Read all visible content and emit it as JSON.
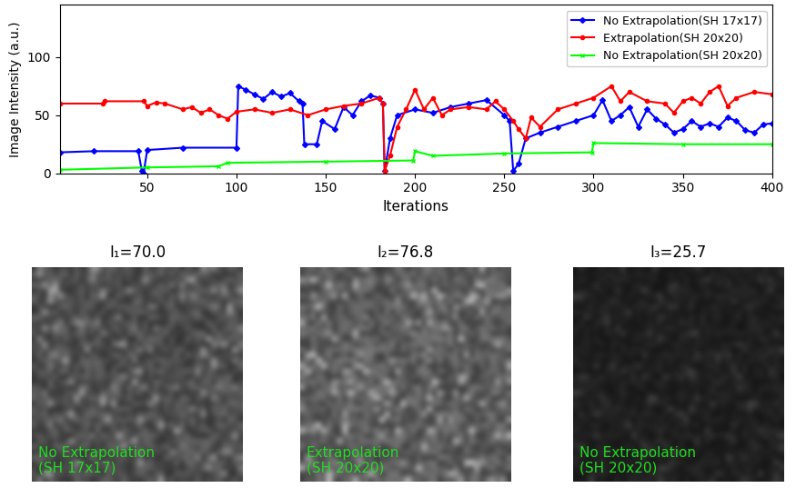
{
  "chart_data": {
    "type": "line",
    "xlabel": "Iterations",
    "ylabel": "Image Intensity (a.u.)",
    "xlim": [
      1,
      400
    ],
    "xticks": [
      50,
      100,
      150,
      200,
      250,
      300,
      350,
      400
    ],
    "ylim": [
      0,
      145
    ],
    "yticks": [
      0,
      50,
      100
    ],
    "grid": false,
    "legend": "upper right",
    "series": [
      {
        "name": "No Extrapolation(SH 17x17)",
        "color": "#0000ff",
        "marker": "diamond",
        "line_style": "solid",
        "x": [
          1,
          20,
          45,
          47,
          48,
          50,
          70,
          100,
          101,
          105,
          110,
          115,
          120,
          125,
          130,
          135,
          137,
          138,
          145,
          148,
          155,
          160,
          165,
          170,
          175,
          180,
          182,
          183,
          186,
          190,
          200,
          210,
          220,
          230,
          240,
          250,
          253,
          255,
          258,
          262,
          270,
          280,
          290,
          300,
          305,
          310,
          315,
          320,
          325,
          330,
          335,
          340,
          345,
          350,
          355,
          360,
          365,
          370,
          375,
          380,
          385,
          390,
          395,
          400
        ],
        "values": [
          18,
          19,
          19,
          2,
          0,
          20,
          22,
          22,
          75,
          72,
          68,
          64,
          70,
          66,
          69,
          62,
          60,
          25,
          25,
          45,
          38,
          57,
          50,
          62,
          67,
          65,
          60,
          2,
          30,
          50,
          55,
          52,
          57,
          60,
          63,
          50,
          45,
          2,
          8,
          30,
          35,
          40,
          45,
          50,
          63,
          45,
          50,
          57,
          40,
          55,
          47,
          42,
          35,
          38,
          45,
          40,
          43,
          40,
          48,
          45,
          37,
          35,
          42,
          43
        ]
      },
      {
        "name": "Extrapolation(SH 20x20)",
        "color": "#ff0000",
        "marker": "circle",
        "line_style": "solid",
        "x": [
          1,
          25,
          26,
          48,
          50,
          55,
          60,
          70,
          75,
          80,
          85,
          90,
          95,
          100,
          110,
          120,
          130,
          140,
          150,
          160,
          170,
          180,
          182,
          183,
          186,
          190,
          195,
          200,
          205,
          210,
          215,
          220,
          230,
          240,
          245,
          250,
          255,
          258,
          262,
          265,
          270,
          280,
          290,
          300,
          310,
          315,
          320,
          330,
          340,
          345,
          350,
          355,
          360,
          365,
          370,
          375,
          380,
          390,
          400
        ],
        "values": [
          60,
          60,
          62,
          62,
          58,
          61,
          60,
          55,
          57,
          52,
          55,
          50,
          47,
          53,
          55,
          52,
          55,
          50,
          55,
          58,
          60,
          65,
          60,
          2,
          15,
          40,
          55,
          72,
          55,
          65,
          50,
          55,
          57,
          55,
          62,
          55,
          45,
          38,
          30,
          48,
          40,
          55,
          60,
          65,
          75,
          62,
          70,
          62,
          60,
          52,
          62,
          65,
          60,
          70,
          75,
          58,
          65,
          70,
          68
        ]
      },
      {
        "name": "No Extrapolation(SH 20x20)",
        "color": "#00ff00",
        "marker": "x",
        "line_style": "solid",
        "x": [
          1,
          50,
          90,
          95,
          150,
          199,
          200,
          210,
          250,
          299,
          300,
          350,
          400
        ],
        "values": [
          3,
          5,
          6,
          9,
          10,
          11,
          19,
          15,
          17,
          18,
          26,
          25,
          25
        ]
      }
    ]
  },
  "panels": [
    {
      "title": "I₁=70.0",
      "label": "No Extrapolation\n(SH 17x17)"
    },
    {
      "title": "I₂=76.8",
      "label": "Extrapolation\n(SH 20x20)"
    },
    {
      "title": "I₃=25.7",
      "label": "No Extrapolation\n(SH 20x20)"
    }
  ]
}
